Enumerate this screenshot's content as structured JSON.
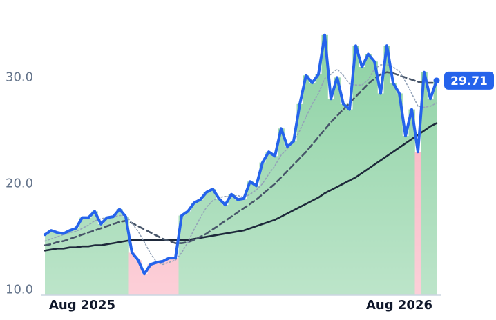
{
  "chart_data": {
    "type": "line",
    "categories": [
      null,
      null,
      null,
      null,
      null,
      null,
      "Aug 2025",
      null,
      null,
      null,
      null,
      null,
      null,
      null,
      null,
      null,
      null,
      null,
      null,
      null,
      null,
      null,
      null,
      null,
      null,
      null,
      null,
      null,
      null,
      null,
      null,
      null,
      null,
      null,
      null,
      null,
      null,
      null,
      null,
      null,
      null,
      null,
      null,
      null,
      null,
      null,
      null,
      null,
      null,
      null,
      null,
      null,
      null,
      null,
      null,
      null,
      null,
      "Aug 2026",
      null,
      null,
      null,
      null,
      null,
      null
    ],
    "series": [
      {
        "color": "#2563eb",
        "style": "solid",
        "values": [
          15.2,
          15.6,
          15.4,
          15.3,
          15.6,
          15.8,
          16.8,
          16.8,
          17.4,
          16.2,
          16.8,
          16.9,
          17.6,
          16.9,
          13.5,
          12.8,
          11.5,
          12.4,
          12.6,
          12.7,
          13.0,
          13.0,
          17.0,
          17.4,
          18.2,
          18.5,
          19.2,
          19.5,
          18.6,
          18.0,
          19.0,
          18.5,
          18.6,
          20.2,
          19.8,
          22.0,
          23.0,
          22.6,
          25.2,
          23.5,
          24.0,
          27.5,
          30.2,
          29.5,
          30.3,
          34.0,
          28.0,
          30.0,
          27.5,
          27.0,
          33.0,
          31.0,
          32.2,
          31.5,
          28.5,
          33.0,
          29.5,
          28.5,
          24.5,
          27.0,
          23.0,
          30.5,
          28.0,
          29.71
        ]
      },
      {
        "color": "#94a3b8",
        "style": "dotted",
        "values": [
          14.6,
          14.8,
          15.0,
          15.2,
          15.4,
          15.5,
          15.8,
          16.1,
          16.5,
          16.7,
          16.8,
          16.9,
          17.0,
          17.0,
          16.3,
          15.5,
          14.5,
          13.4,
          12.6,
          12.4,
          12.6,
          12.8,
          13.5,
          14.5,
          15.7,
          16.8,
          17.8,
          18.4,
          18.7,
          18.8,
          18.8,
          18.9,
          18.7,
          19.0,
          19.4,
          20.0,
          20.9,
          21.7,
          22.7,
          23.3,
          24.0,
          25.0,
          26.3,
          27.5,
          28.5,
          29.9,
          30.3,
          30.8,
          30.2,
          29.4,
          29.3,
          29.3,
          29.8,
          30.8,
          31.2,
          31.2,
          31.0,
          30.6,
          29.6,
          28.5,
          27.3,
          27.2,
          27.3,
          27.6
        ]
      },
      {
        "color": "#475569",
        "style": "dashed",
        "values": [
          14.2,
          14.3,
          14.5,
          14.6,
          14.8,
          15.0,
          15.2,
          15.4,
          15.6,
          15.8,
          16.0,
          16.2,
          16.4,
          16.5,
          16.3,
          16.0,
          15.7,
          15.4,
          15.1,
          14.8,
          14.6,
          14.4,
          14.4,
          14.5,
          14.7,
          15.0,
          15.3,
          15.7,
          16.1,
          16.5,
          16.9,
          17.3,
          17.7,
          18.1,
          18.5,
          19.0,
          19.5,
          20.0,
          20.6,
          21.2,
          21.8,
          22.4,
          23.0,
          23.7,
          24.4,
          25.1,
          25.8,
          26.4,
          27.0,
          27.6,
          28.2,
          28.8,
          29.4,
          29.9,
          30.3,
          30.5,
          30.4,
          30.2,
          30.0,
          29.8,
          29.6,
          29.5,
          29.5,
          29.5
        ]
      },
      {
        "color": "#1e293b",
        "style": "solid",
        "values": [
          13.7,
          13.8,
          13.9,
          13.9,
          14.0,
          14.0,
          14.1,
          14.1,
          14.2,
          14.2,
          14.3,
          14.4,
          14.5,
          14.6,
          14.7,
          14.7,
          14.7,
          14.7,
          14.7,
          14.7,
          14.7,
          14.7,
          14.7,
          14.7,
          14.8,
          14.9,
          15.0,
          15.1,
          15.2,
          15.3,
          15.4,
          15.5,
          15.6,
          15.8,
          16.0,
          16.2,
          16.4,
          16.6,
          16.9,
          17.2,
          17.5,
          17.8,
          18.1,
          18.4,
          18.7,
          19.1,
          19.4,
          19.7,
          20.0,
          20.3,
          20.6,
          21.0,
          21.4,
          21.8,
          22.2,
          22.6,
          23.0,
          23.4,
          23.8,
          24.2,
          24.6,
          25.0,
          25.4,
          25.7
        ]
      }
    ],
    "ylim": [
      9.5,
      37.3
    ],
    "yticks": [
      {
        "value": 10,
        "label": "10.0"
      },
      {
        "value": 20,
        "label": "20.0"
      },
      {
        "value": 30,
        "label": "30.0"
      }
    ],
    "area_colors": {
      "above": "#86cf9e",
      "below": "#f9a8b8"
    }
  }
}
